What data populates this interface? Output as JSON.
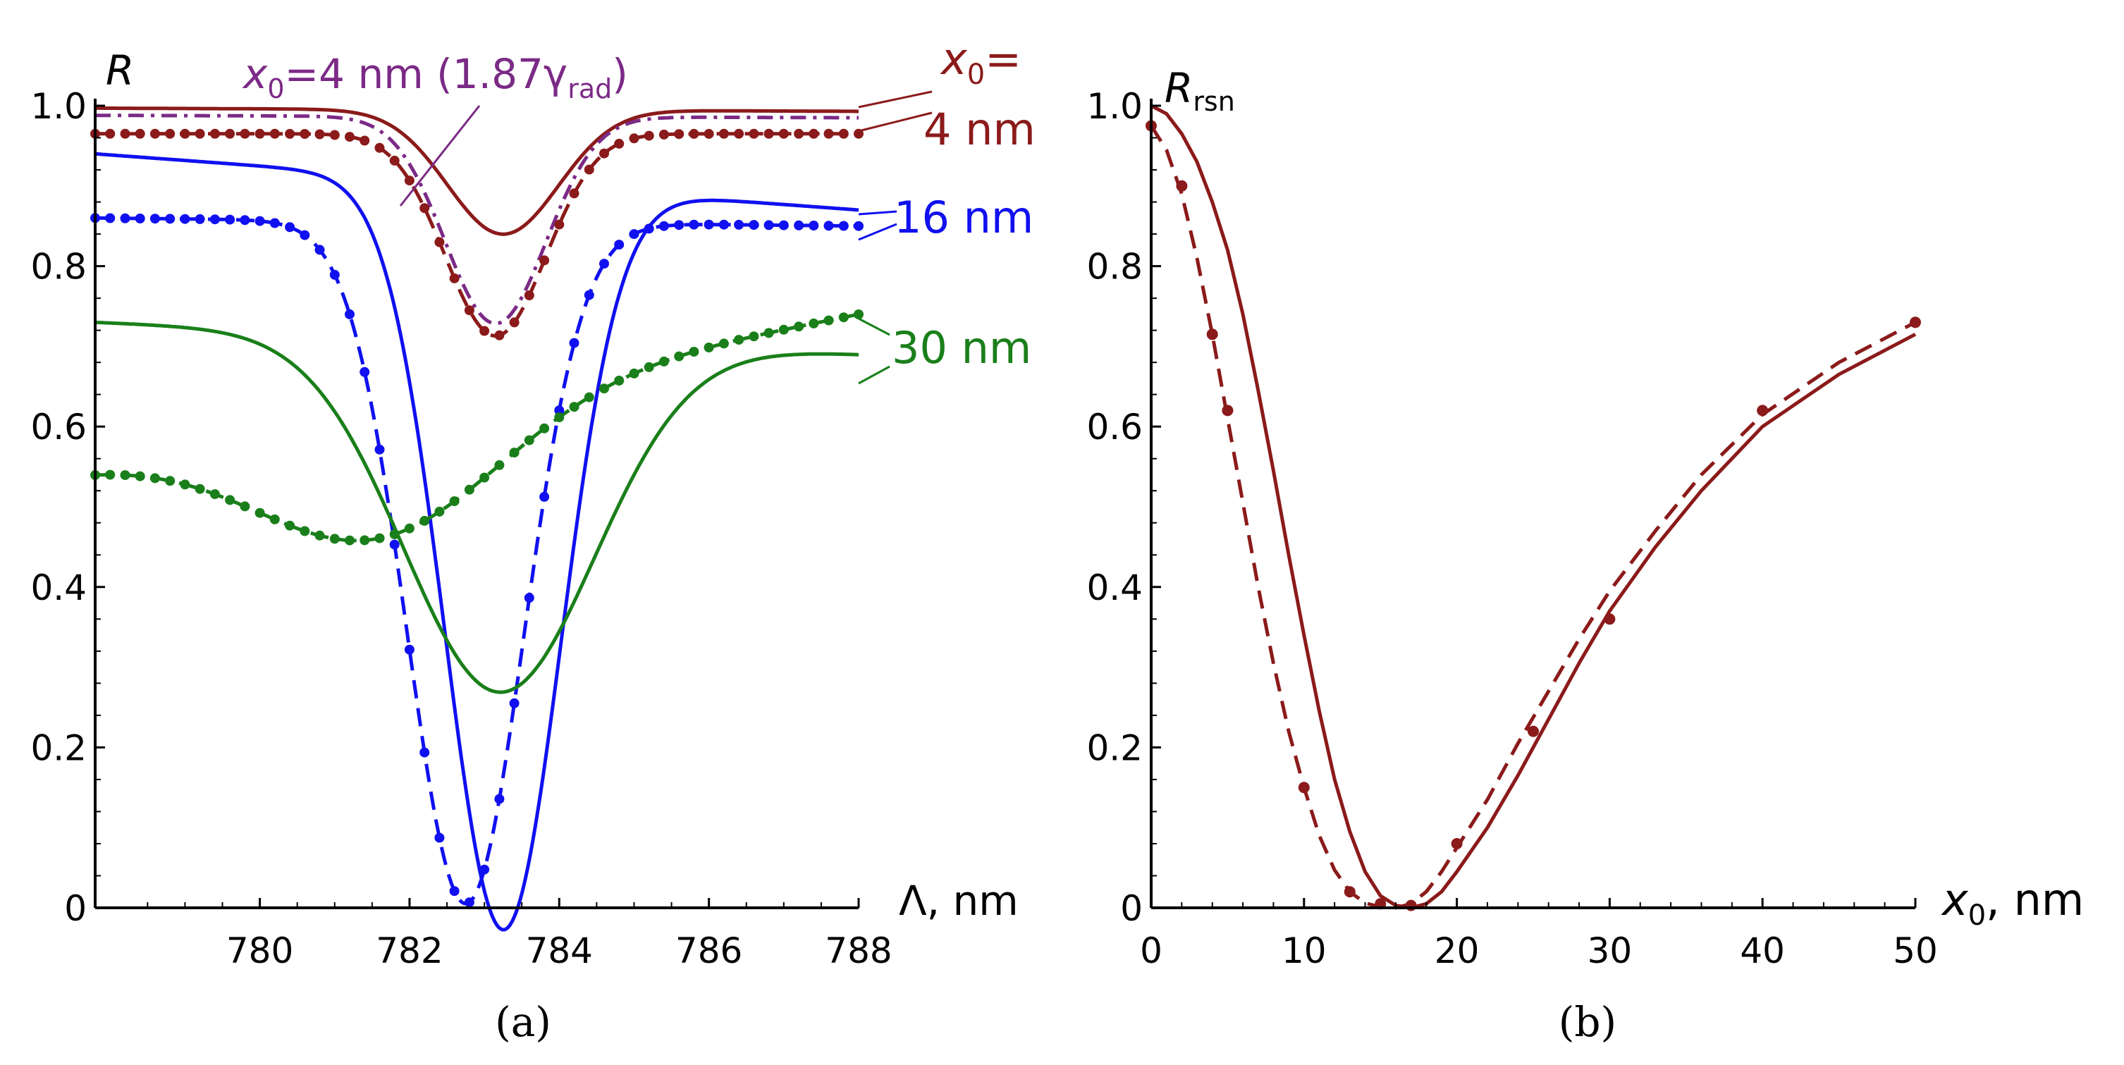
{
  "chart_data": [
    {
      "id": "a",
      "type": "line",
      "panel_label": "(a)",
      "xlabel": "Λ, nm",
      "ylabel": "R",
      "xlim": [
        777.8,
        788
      ],
      "ylim": [
        0,
        1.0
      ],
      "x_ticks": [
        780,
        782,
        784,
        786,
        788
      ],
      "x_tick_labels": [
        "780",
        "782",
        "784",
        "786",
        "788"
      ],
      "y_ticks": [
        0,
        0.2,
        0.4,
        0.6,
        0.8,
        1.0
      ],
      "y_tick_labels": [
        "0",
        "0.2",
        "0.4",
        "0.6",
        "0.8",
        "1.0"
      ],
      "colors": {
        "x4": "#8B1A1A",
        "x4gamma": "#7B2A86",
        "x16": "#1010F0",
        "x30": "#1A7F1A"
      },
      "series": [
        {
          "name": "x0=4 nm solid",
          "color_key": "x4",
          "style": "solid",
          "center": 783.25,
          "base": 0.997,
          "tail": 0.993,
          "depth": 0.155,
          "width": 1.05,
          "exp": 2
        },
        {
          "name": "x0=4 nm (1.87γrad) dash-dot",
          "color_key": "x4gamma",
          "style": "dashdot",
          "center": 783.15,
          "base": 0.988,
          "tail": 0.985,
          "depth": 0.258,
          "width": 0.95,
          "exp": 2
        },
        {
          "name": "x0=4 nm dashed",
          "color_key": "x4",
          "style": "dashed",
          "center": 783.15,
          "base": 0.965,
          "tail": 0.965,
          "depth": 0.252,
          "width": 0.95,
          "exp": 2
        },
        {
          "name": "x0=16 nm solid",
          "color_key": "x16",
          "style": "solid",
          "center": 783.25,
          "base": 0.94,
          "tail": 0.87,
          "depth": 0.93,
          "width": 1.1,
          "exp": 2
        },
        {
          "name": "x0=16 nm dashed",
          "color_key": "x16",
          "style": "dashed",
          "center": 782.75,
          "base": 0.86,
          "tail": 0.85,
          "depth": 0.85,
          "width": 1.1,
          "exp": 2
        },
        {
          "name": "x0=30 nm solid",
          "color_key": "x30",
          "style": "solid",
          "center": 783.2,
          "base": 0.73,
          "tail": 0.69,
          "depth": 0.44,
          "width": 1.8,
          "exp": 2
        },
        {
          "name": "x0=30 nm dashed",
          "color_key": "x30",
          "style": "dashed",
          "center": 781.6,
          "base": 0.55,
          "tail": 0.74,
          "depth": 0.16,
          "width": 2.3,
          "exp": 2
        }
      ],
      "dotted_markers": [
        {
          "series_index": 2,
          "x_from": 777.8,
          "x_to": 788,
          "step": 0.2
        },
        {
          "series_index": 4,
          "x_from": 777.8,
          "x_to": 788,
          "step": 0.2
        },
        {
          "series_index": 6,
          "x_from": 777.8,
          "x_to": 788,
          "step": 0.2
        }
      ],
      "annotations": {
        "x0_gamma": {
          "prefix": "x",
          "sub": "0",
          "suffix": "=4 nm (1.87γ",
          "sub2": "rad",
          "close": ")",
          "color_key": "x4gamma"
        },
        "x0_label": {
          "prefix": "x",
          "sub": "0",
          "suffix": "=",
          "color_key": "x4"
        },
        "label_4nm": {
          "text": "4 nm",
          "color_key": "x4"
        },
        "label_16nm": {
          "text": "16 nm",
          "color_key": "x16"
        },
        "label_30nm": {
          "text": "30 nm",
          "color_key": "x30"
        }
      }
    },
    {
      "id": "b",
      "type": "line",
      "panel_label": "(b)",
      "xlabel_prefix": "x",
      "xlabel_sub": "0",
      "xlabel_suffix": ", nm",
      "ylabel_prefix": "R",
      "ylabel_sub": "rsn",
      "xlim": [
        0,
        50
      ],
      "ylim": [
        0,
        1.0
      ],
      "x_ticks": [
        0,
        10,
        20,
        30,
        40,
        50
      ],
      "x_tick_labels": [
        "0",
        "10",
        "20",
        "30",
        "40",
        "50"
      ],
      "y_ticks": [
        0,
        0.2,
        0.4,
        0.6,
        0.8,
        1.0
      ],
      "y_tick_labels": [
        "0",
        "0.2",
        "0.4",
        "0.6",
        "0.8",
        "1.0"
      ],
      "color": "#8B1A1A",
      "series": [
        {
          "name": "solid",
          "style": "solid",
          "x": [
            0,
            1,
            2,
            3,
            4,
            5,
            6,
            7,
            8,
            9,
            10,
            11,
            12,
            13,
            14,
            15,
            16,
            17,
            18,
            19,
            20,
            22,
            24,
            26,
            28,
            30,
            33,
            36,
            40,
            45,
            50
          ],
          "y": [
            1.0,
            0.99,
            0.965,
            0.93,
            0.88,
            0.82,
            0.74,
            0.645,
            0.545,
            0.44,
            0.34,
            0.245,
            0.16,
            0.095,
            0.045,
            0.015,
            0.003,
            0.0,
            0.005,
            0.02,
            0.045,
            0.1,
            0.165,
            0.235,
            0.305,
            0.37,
            0.45,
            0.52,
            0.6,
            0.665,
            0.715
          ]
        },
        {
          "name": "dashed",
          "style": "dashed",
          "x": [
            0,
            1,
            2,
            3,
            4,
            5,
            6,
            7,
            8,
            9,
            10,
            11,
            12,
            13,
            14,
            15,
            16,
            17,
            18,
            19,
            20,
            22,
            24,
            26,
            28,
            30,
            33,
            36,
            40,
            45,
            50
          ],
          "y": [
            0.975,
            0.945,
            0.89,
            0.81,
            0.715,
            0.61,
            0.505,
            0.4,
            0.305,
            0.22,
            0.15,
            0.09,
            0.047,
            0.02,
            0.006,
            0.001,
            0.0,
            0.005,
            0.02,
            0.045,
            0.075,
            0.135,
            0.205,
            0.27,
            0.335,
            0.395,
            0.47,
            0.54,
            0.615,
            0.68,
            0.73
          ]
        }
      ],
      "points": {
        "x": [
          0,
          2,
          4,
          5,
          10,
          13,
          15,
          17,
          20,
          25,
          30,
          40,
          50
        ],
        "y": [
          0.975,
          0.9,
          0.715,
          0.62,
          0.15,
          0.02,
          0.005,
          0.003,
          0.08,
          0.22,
          0.36,
          0.62,
          0.73
        ]
      }
    }
  ]
}
